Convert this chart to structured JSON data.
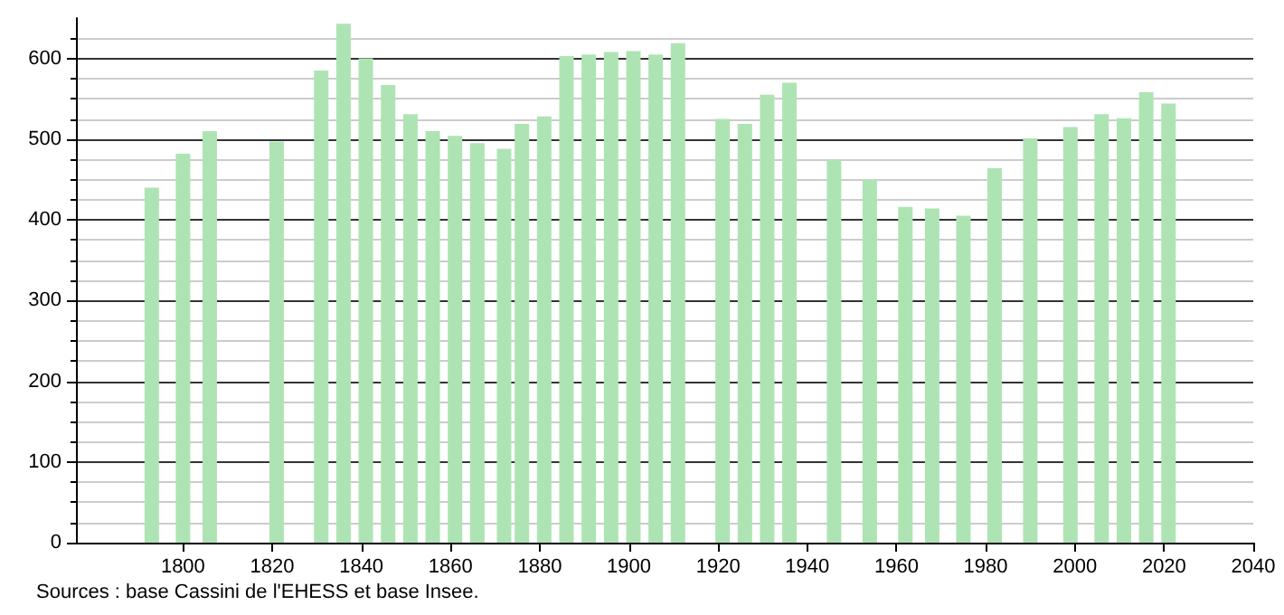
{
  "chart_data": {
    "type": "bar",
    "x": [
      1793,
      1800,
      1806,
      1821,
      1831,
      1836,
      1841,
      1846,
      1851,
      1856,
      1861,
      1866,
      1872,
      1876,
      1881,
      1886,
      1891,
      1896,
      1901,
      1906,
      1911,
      1921,
      1926,
      1931,
      1936,
      1946,
      1954,
      1962,
      1968,
      1975,
      1982,
      1990,
      1999,
      2006,
      2011,
      2016,
      2021
    ],
    "values": [
      440,
      482,
      510,
      497,
      585,
      643,
      600,
      567,
      531,
      510,
      504,
      495,
      488,
      519,
      528,
      603,
      605,
      608,
      609,
      605,
      619,
      525,
      519,
      555,
      570,
      474,
      450,
      416,
      414,
      405,
      464,
      501,
      515,
      531,
      526,
      558,
      544
    ],
    "color": "#aee4b4",
    "xlim": [
      1776,
      2040
    ],
    "xticks": [
      1800,
      1820,
      1840,
      1860,
      1880,
      1900,
      1920,
      1940,
      1960,
      1980,
      2000,
      2020,
      2040
    ],
    "ylim": [
      0,
      650
    ],
    "yticks": [
      0,
      100,
      200,
      300,
      400,
      500,
      600
    ],
    "grid": "y",
    "annotations": [
      "Sources : base Cassini de l'EHESS et base Insee."
    ]
  }
}
